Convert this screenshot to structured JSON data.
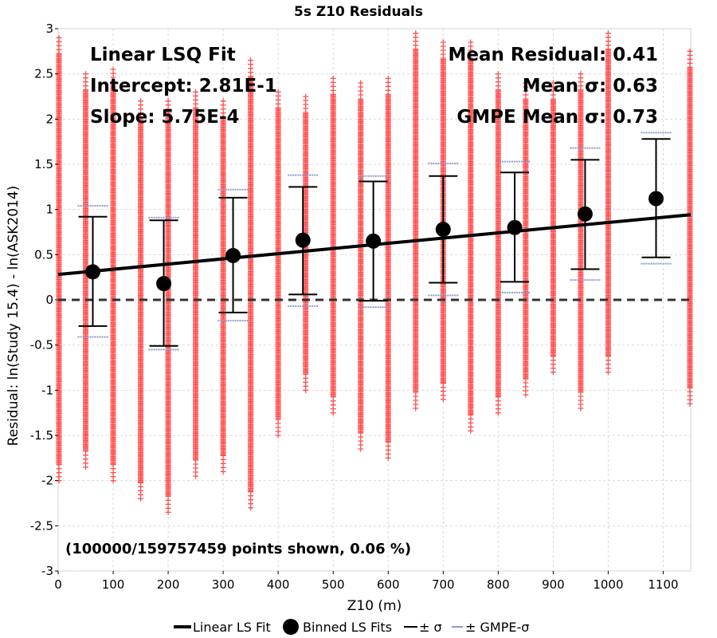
{
  "chart_data": {
    "type": "scatter",
    "title": "5s Z10 Residuals",
    "xlabel": "Z10 (m)",
    "ylabel": "Residual: ln(Study 15.4) - ln(ASK2014)",
    "xlim": [
      0,
      1150
    ],
    "ylim": [
      -3,
      3
    ],
    "x_ticks": [
      "0",
      "100",
      "200",
      "300",
      "400",
      "500",
      "600",
      "700",
      "800",
      "900",
      "1000",
      "1100"
    ],
    "y_ticks": [
      "-3",
      "-2.5",
      "-2",
      "-1.5",
      "-1",
      "-0.5",
      "0",
      "0.5",
      "1",
      "1.5",
      "2",
      "2.5",
      "3"
    ],
    "grid": true,
    "scatter_columns": [
      {
        "x": 0,
        "ymin": -2.0,
        "ymax": 2.9
      },
      {
        "x": 50,
        "ymin": -1.85,
        "ymax": 2.5
      },
      {
        "x": 100,
        "ymin": -2.0,
        "ymax": 2.55
      },
      {
        "x": 150,
        "ymin": -2.2,
        "ymax": 2.2
      },
      {
        "x": 200,
        "ymin": -2.35,
        "ymax": 2.2
      },
      {
        "x": 250,
        "ymin": -1.95,
        "ymax": 2.3
      },
      {
        "x": 300,
        "ymin": -1.9,
        "ymax": 2.2
      },
      {
        "x": 350,
        "ymin": -2.3,
        "ymax": 2.65
      },
      {
        "x": 400,
        "ymin": -1.5,
        "ymax": 2.3
      },
      {
        "x": 450,
        "ymin": -1.0,
        "ymax": 2.25
      },
      {
        "x": 500,
        "ymin": -1.25,
        "ymax": 2.45
      },
      {
        "x": 550,
        "ymin": -1.65,
        "ymax": 2.4
      },
      {
        "x": 600,
        "ymin": -1.75,
        "ymax": 2.45
      },
      {
        "x": 650,
        "ymin": -1.2,
        "ymax": 2.95
      },
      {
        "x": 700,
        "ymin": -1.1,
        "ymax": 2.85
      },
      {
        "x": 750,
        "ymin": -1.45,
        "ymax": 2.85
      },
      {
        "x": 800,
        "ymin": -1.25,
        "ymax": 2.5
      },
      {
        "x": 850,
        "ymin": -1.05,
        "ymax": 2.4
      },
      {
        "x": 900,
        "ymin": -0.8,
        "ymax": 2.4
      },
      {
        "x": 950,
        "ymin": -1.2,
        "ymax": 2.5
      },
      {
        "x": 1000,
        "ymin": -0.8,
        "ymax": 2.95
      },
      {
        "x": 1150,
        "ymin": -1.15,
        "ymax": 2.75
      }
    ],
    "fit_line": {
      "name": "Linear LS Fit",
      "intercept": 0.281,
      "slope": 0.000575
    },
    "binned": [
      {
        "x": 63,
        "mean": 0.31,
        "sigma_low": -0.29,
        "sigma_high": 0.92,
        "gmpe_low": -0.41,
        "gmpe_high": 1.04
      },
      {
        "x": 192,
        "mean": 0.18,
        "sigma_low": -0.51,
        "sigma_high": 0.88,
        "gmpe_low": -0.55,
        "gmpe_high": 0.91
      },
      {
        "x": 318,
        "mean": 0.49,
        "sigma_low": -0.14,
        "sigma_high": 1.13,
        "gmpe_low": -0.23,
        "gmpe_high": 1.22
      },
      {
        "x": 445,
        "mean": 0.66,
        "sigma_low": 0.06,
        "sigma_high": 1.25,
        "gmpe_low": -0.07,
        "gmpe_high": 1.38
      },
      {
        "x": 573,
        "mean": 0.65,
        "sigma_low": -0.01,
        "sigma_high": 1.31,
        "gmpe_low": -0.08,
        "gmpe_high": 1.37
      },
      {
        "x": 700,
        "mean": 0.78,
        "sigma_low": 0.19,
        "sigma_high": 1.37,
        "gmpe_low": 0.05,
        "gmpe_high": 1.51
      },
      {
        "x": 830,
        "mean": 0.8,
        "sigma_low": 0.2,
        "sigma_high": 1.41,
        "gmpe_low": 0.08,
        "gmpe_high": 1.53
      },
      {
        "x": 958,
        "mean": 0.95,
        "sigma_low": 0.34,
        "sigma_high": 1.55,
        "gmpe_low": 0.22,
        "gmpe_high": 1.68
      },
      {
        "x": 1087,
        "mean": 1.12,
        "sigma_low": 0.47,
        "sigma_high": 1.78,
        "gmpe_low": 0.4,
        "gmpe_high": 1.85
      }
    ],
    "zero_line": 0,
    "annotations": {
      "fit_title": "Linear LSQ Fit",
      "intercept": "Intercept: 2.81E-1",
      "slope": "Slope: 5.75E-4",
      "mean_residual": "Mean Residual: 0.41",
      "mean_sigma": "Mean σ: 0.63",
      "gmpe_mean_sigma": "GMPE Mean σ: 0.73",
      "points_shown": "(100000/159757459 points shown, 0.06 %)"
    },
    "legend": [
      {
        "name": "Linear LS Fit",
        "kind": "line"
      },
      {
        "name": "Binned LS Fits",
        "kind": "dot"
      },
      {
        "name": "± σ",
        "kind": "sigma"
      },
      {
        "name": "± GMPE-σ",
        "kind": "gmpe"
      }
    ],
    "colors": {
      "scatter": "#ff5050",
      "fit": "#000000",
      "binned": "#000000",
      "gmpe": "#8c9bd0",
      "grid": "#d9d9d9",
      "zero": "#333333"
    }
  }
}
